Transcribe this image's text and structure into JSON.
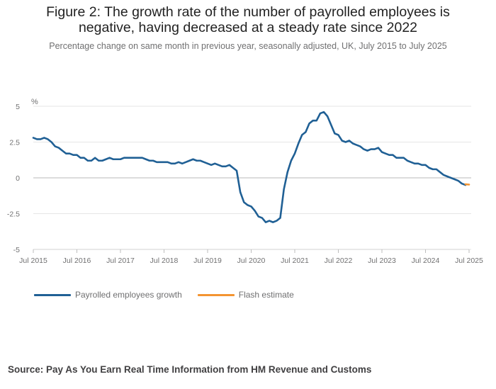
{
  "title_line1": "Figure 2: The growth rate of the number of payrolled employees is",
  "title_line2": "negative, having decreased at a steady rate since 2022",
  "subtitle": "Percentage change on same month in previous year, seasonally adjusted, UK, July 2015 to July 2025",
  "source": "Source: Pay As You Earn Real Time Information from HM Revenue and Customs",
  "colors": {
    "main": "#206095",
    "flash": "#f39431",
    "grid": "#e6e6e6",
    "zero": "#b9b9b9"
  },
  "chart_data": {
    "type": "line",
    "y_unit": "%",
    "ylim": [
      -5,
      5
    ],
    "y_ticks": [
      5,
      2.5,
      0,
      -2.5,
      -5
    ],
    "y_tick_labels": [
      "5",
      "2.5",
      "0",
      "-2.5",
      "-5"
    ],
    "x_ticks": [
      "Jul 2015",
      "Jul 2016",
      "Jul 2017",
      "Jul 2018",
      "Jul 2019",
      "Jul 2020",
      "Jul 2021",
      "Jul 2022",
      "Jul 2023",
      "Jul 2024",
      "Jul 2025"
    ],
    "grid": "horizontal",
    "legend_position": "bottom-left",
    "x_start": "Jul 2015",
    "series": [
      {
        "name": "Payrolled employees growth",
        "color": "#206095",
        "values": [
          2.8,
          2.7,
          2.7,
          2.8,
          2.7,
          2.5,
          2.2,
          2.1,
          1.9,
          1.7,
          1.7,
          1.6,
          1.6,
          1.4,
          1.4,
          1.2,
          1.2,
          1.4,
          1.2,
          1.2,
          1.3,
          1.4,
          1.3,
          1.3,
          1.3,
          1.4,
          1.4,
          1.4,
          1.4,
          1.4,
          1.4,
          1.3,
          1.2,
          1.2,
          1.1,
          1.1,
          1.1,
          1.1,
          1.0,
          1.0,
          1.1,
          1.0,
          1.1,
          1.2,
          1.3,
          1.2,
          1.2,
          1.1,
          1.0,
          0.9,
          1.0,
          0.9,
          0.8,
          0.8,
          0.9,
          0.7,
          0.5,
          -1.0,
          -1.7,
          -1.9,
          -2.0,
          -2.3,
          -2.7,
          -2.8,
          -3.1,
          -3.0,
          -3.1,
          -3.0,
          -2.8,
          -0.8,
          0.4,
          1.2,
          1.7,
          2.4,
          3.0,
          3.2,
          3.8,
          4.0,
          4.0,
          4.5,
          4.6,
          4.3,
          3.7,
          3.1,
          3.0,
          2.6,
          2.5,
          2.6,
          2.4,
          2.3,
          2.2,
          2.0,
          1.9,
          2.0,
          2.0,
          2.1,
          1.8,
          1.7,
          1.6,
          1.6,
          1.4,
          1.4,
          1.4,
          1.2,
          1.1,
          1.0,
          1.0,
          0.9,
          0.9,
          0.7,
          0.6,
          0.6,
          0.4,
          0.2,
          0.1,
          0.0,
          -0.1,
          -0.2,
          -0.4,
          -0.5
        ]
      },
      {
        "name": "Flash estimate",
        "color": "#f39431",
        "start_index": 119,
        "values": [
          -0.45,
          -0.47
        ]
      }
    ]
  }
}
